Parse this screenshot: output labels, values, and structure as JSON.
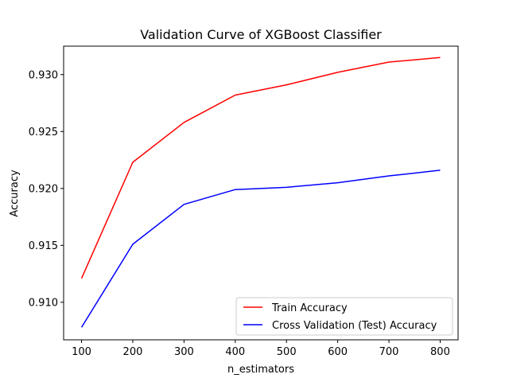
{
  "chart_data": {
    "type": "line",
    "title": "Validation Curve of XGBoost Classifier",
    "xlabel": "n_estimators",
    "ylabel": "Accuracy",
    "x": [
      100,
      200,
      300,
      400,
      500,
      600,
      700,
      800
    ],
    "xticks": [
      100,
      200,
      300,
      400,
      500,
      600,
      700,
      800
    ],
    "yticks": [
      0.91,
      0.915,
      0.92,
      0.925,
      0.93
    ],
    "ytick_labels": [
      "0.910",
      "0.915",
      "0.920",
      "0.925",
      "0.930"
    ],
    "xlim": [
      65,
      835
    ],
    "ylim": [
      0.9067,
      0.9325
    ],
    "grid": false,
    "legend_position": "lower-right",
    "series": [
      {
        "name": "Train Accuracy",
        "color": "#ff0000",
        "values": [
          0.9121,
          0.9223,
          0.9258,
          0.9282,
          0.9291,
          0.9302,
          0.9311,
          0.9315
        ]
      },
      {
        "name": "Cross Validation (Test) Accuracy",
        "color": "#0000ff",
        "values": [
          0.9078,
          0.9151,
          0.9186,
          0.9199,
          0.9201,
          0.9205,
          0.9211,
          0.9216
        ]
      }
    ]
  }
}
